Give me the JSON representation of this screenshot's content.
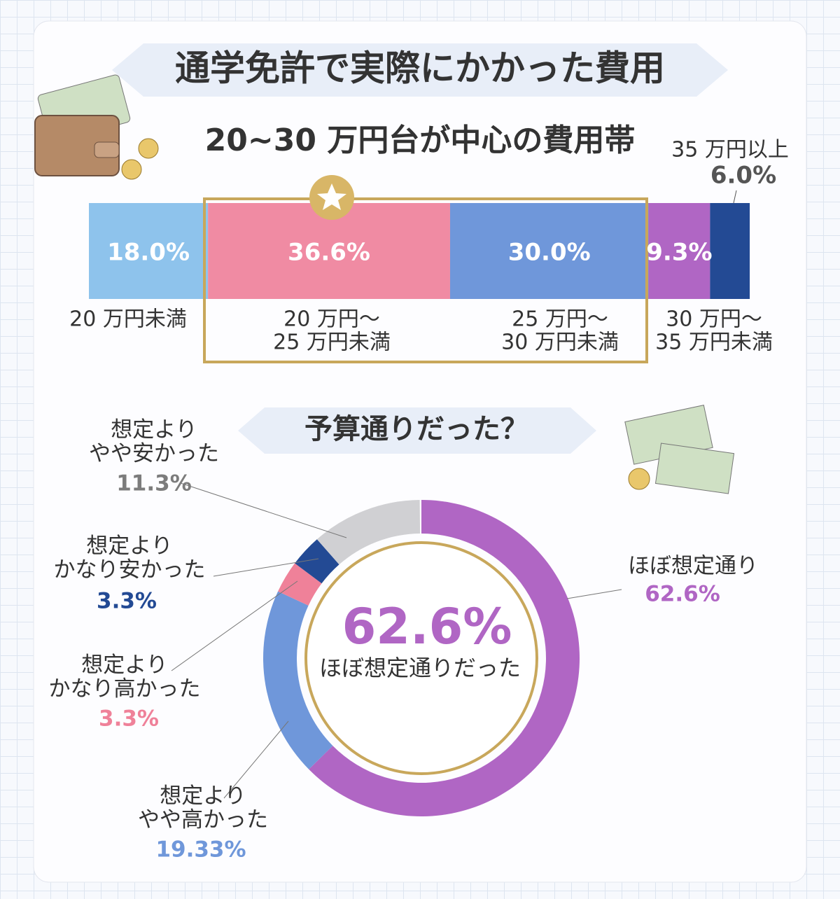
{
  "chart_data": [
    {
      "type": "stacked-bar",
      "title": "通学免許で実際にかかった費用",
      "subtitle": "20~30 万円台が中心の費用帯",
      "categories": [
        "20 万円未満",
        "20 万円～\n25 万円未満",
        "25 万円～\n30 万円未満",
        "30 万円～\n35 万円未満",
        "35 万円以上"
      ],
      "values": [
        18.0,
        36.6,
        30.0,
        9.3,
        6.0
      ],
      "value_labels": [
        "18.0%",
        "36.6%",
        "30.0%",
        "9.3%",
        "6.0%"
      ],
      "colors": [
        "#8ec3ec",
        "#f08ba3",
        "#6f97da",
        "#b066c4",
        "#234a94"
      ]
    },
    {
      "type": "donut",
      "title": "予算通りだった？",
      "center_label": "62.6%",
      "center_text": "ほぼ想定通りだった",
      "categories": [
        "ほぼ想定通り",
        "想定より\nやや高かった",
        "想定より\nかなり高かった",
        "想定より\nかなり安かった",
        "想定より\nやや安かった"
      ],
      "values": [
        62.6,
        19.33,
        3.3,
        3.3,
        11.3
      ],
      "value_labels": [
        "62.6%",
        "19.33%",
        "3.3%",
        "3.3%",
        "11.3%"
      ],
      "colors": [
        "#b066c4",
        "#6f97da",
        "#ef8199",
        "#234a94",
        "#d0d0d3"
      ],
      "value_label_colors": [
        "#b066c4",
        "#6f97da",
        "#ef8199",
        "#234a94",
        "#7c7c7c"
      ]
    }
  ]
}
